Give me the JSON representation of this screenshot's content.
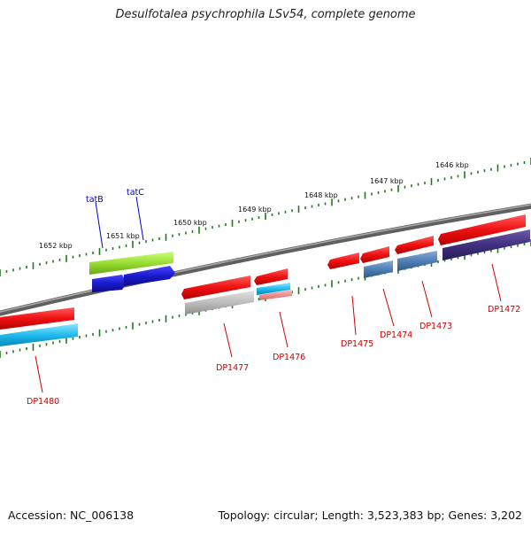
{
  "title": "Desulfotalea psychrophila LSv54, complete genome",
  "footer": {
    "accession": "Accession: NC_006138",
    "topology": "Topology: circular; Length: 3,523,383 bp; Genes: 3,202"
  },
  "colors": {
    "backbone": "#7a7a7a",
    "tick": "#1f7a1f",
    "gene_label_named": "#0000cc",
    "gene_label_locus": "#cc0000"
  },
  "scale_labels": [
    "1652 kbp",
    "1651 kbp",
    "1650 kbp",
    "1649 kbp",
    "1648 kbp",
    "1647 kbp",
    "1646 kbp"
  ],
  "genes": [
    {
      "label": "tatB",
      "kind": "named",
      "color": "#99dd33",
      "strand": "forward"
    },
    {
      "label": "tatC",
      "kind": "named",
      "color": "#1a1acc",
      "strand": "forward"
    },
    {
      "label": "DP1472",
      "kind": "locus",
      "color": "#ee1111",
      "strand": "reverse"
    },
    {
      "label": "DP1473",
      "kind": "locus",
      "color": "#ee1111",
      "strand": "reverse"
    },
    {
      "label": "DP1474",
      "kind": "locus",
      "color": "#ee1111",
      "strand": "reverse"
    },
    {
      "label": "DP1475",
      "kind": "locus",
      "color": "#ee1111",
      "strand": "reverse"
    },
    {
      "label": "DP1476",
      "kind": "locus",
      "color": "#ee1111",
      "strand": "reverse"
    },
    {
      "label": "DP1477",
      "kind": "locus",
      "color": "#ee1111",
      "strand": "reverse"
    },
    {
      "label": "DP1480",
      "kind": "locus",
      "color": "#ee1111",
      "strand": "reverse"
    }
  ]
}
